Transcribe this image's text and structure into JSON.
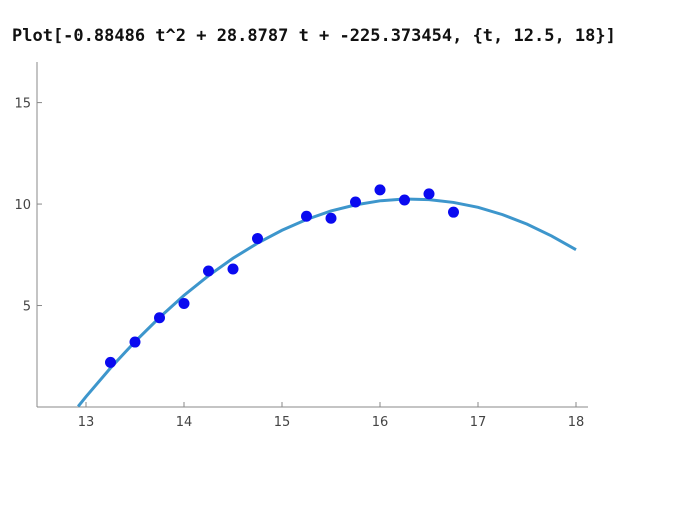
{
  "chart_data": {
    "type": "line",
    "title": "Plot[-0.88486 t^2 + 28.8787 t + -225.373454, {t, 12.5, 18}]",
    "xlim": [
      12.5,
      18
    ],
    "ylim": [
      0,
      17
    ],
    "xticks": [
      13,
      14,
      15,
      16,
      17,
      18
    ],
    "yticks": [
      5,
      10,
      15
    ],
    "series": [
      {
        "type": "line",
        "color": "#3d96cc",
        "x": [
          12.92,
          13,
          13.25,
          13.5,
          13.75,
          14,
          14.25,
          14.5,
          14.75,
          15,
          15.25,
          15.5,
          15.75,
          16,
          16.25,
          16.5,
          16.75,
          17,
          17.25,
          17.5,
          17.75,
          18
        ],
        "values": [
          0.03,
          0.51,
          1.92,
          3.22,
          4.41,
          5.5,
          6.47,
          7.33,
          8.07,
          8.71,
          9.24,
          9.66,
          9.96,
          10.16,
          10.25,
          10.22,
          10.08,
          9.84,
          9.48,
          9.01,
          8.43,
          7.75
        ]
      },
      {
        "type": "scatter",
        "color": "#0a0af0",
        "x": [
          13.25,
          13.5,
          13.75,
          14,
          14.25,
          14.5,
          14.75,
          15.25,
          15.5,
          15.75,
          16,
          16.25,
          16.5,
          16.75
        ],
        "values": [
          2.2,
          3.2,
          4.4,
          5.1,
          6.7,
          6.8,
          8.3,
          9.4,
          9.3,
          10.1,
          10.7,
          10.2,
          10.5,
          9.6
        ]
      }
    ]
  }
}
